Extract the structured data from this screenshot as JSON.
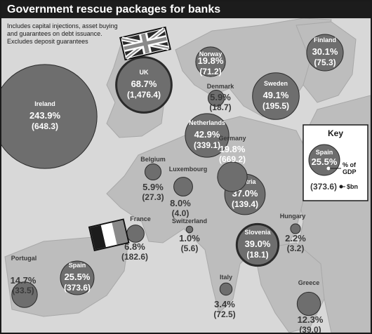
{
  "colors": {
    "background": "#d8d8d8",
    "land": "#bdbdbd",
    "bubble": "#6e6e6e",
    "bubble_outline": "#2a2a2a",
    "text_light": "#ffffff",
    "text_dark": "#3a3a3a",
    "title_bar": "#1c1c1c"
  },
  "chart_data": {
    "type": "bubble-map",
    "title": "Government rescue packages for banks",
    "notes": [
      "Includes capital injections, asset buying",
      "and guarantees on debt issuance.",
      "Excludes deposit guarantees"
    ],
    "size_measure": "% of GDP",
    "key": {
      "title": "Key",
      "example_country": "Spain",
      "example_pct": "25.5%",
      "example_bn": "(373.6)",
      "pct_label_line1": "% of",
      "pct_label_line2": "GDP",
      "bn_label": "$bn"
    },
    "countries": [
      {
        "name": "Ireland",
        "pct_gdp": 243.9,
        "pct_text": "243.9%",
        "bn": 648.3,
        "bn_text": "(648.3)"
      },
      {
        "name": "UK",
        "pct_gdp": 68.7,
        "pct_text": "68.7%",
        "bn": 1476.4,
        "bn_text": "(1,476.4)"
      },
      {
        "name": "Norway",
        "pct_gdp": 19.8,
        "pct_text": "19.8%",
        "bn": 71.2,
        "bn_text": "(71.2)"
      },
      {
        "name": "Finland",
        "pct_gdp": 30.1,
        "pct_text": "30.1%",
        "bn": 75.3,
        "bn_text": "(75.3)"
      },
      {
        "name": "Sweden",
        "pct_gdp": 49.1,
        "pct_text": "49.1%",
        "bn": 195.5,
        "bn_text": "(195.5)"
      },
      {
        "name": "Denmark",
        "pct_gdp": 5.9,
        "pct_text": "5.9%",
        "bn": 18.7,
        "bn_text": "(18.7)"
      },
      {
        "name": "Netherlands",
        "pct_gdp": 42.9,
        "pct_text": "42.9%",
        "bn": 339.1,
        "bn_text": "(339.1)"
      },
      {
        "name": "Germany",
        "pct_gdp": 19.8,
        "pct_text": "19.8%",
        "bn": 669.2,
        "bn_text": "(669.2)"
      },
      {
        "name": "Belgium",
        "pct_gdp": 5.9,
        "pct_text": "5.9%",
        "bn": 27.3,
        "bn_text": "(27.3)"
      },
      {
        "name": "Luxembourg",
        "pct_gdp": 8.0,
        "pct_text": "8.0%",
        "bn": 4.0,
        "bn_text": "(4.0)"
      },
      {
        "name": "Austria",
        "pct_gdp": 37.0,
        "pct_text": "37.0%",
        "bn": 139.4,
        "bn_text": "(139.4)"
      },
      {
        "name": "Hungary",
        "pct_gdp": 2.2,
        "pct_text": "2.2%",
        "bn": 3.2,
        "bn_text": "(3.2)"
      },
      {
        "name": "France",
        "pct_gdp": 6.8,
        "pct_text": "6.8%",
        "bn": 182.6,
        "bn_text": "(182.6)"
      },
      {
        "name": "Switzerland",
        "pct_gdp": 1.0,
        "pct_text": "1.0%",
        "bn": 5.6,
        "bn_text": "(5.6)"
      },
      {
        "name": "Slovenia",
        "pct_gdp": 39.0,
        "pct_text": "39.0%",
        "bn": 18.1,
        "bn_text": "(18.1)"
      },
      {
        "name": "Portugal",
        "pct_gdp": 14.7,
        "pct_text": "14.7%",
        "bn": 33.5,
        "bn_text": "(33.5)"
      },
      {
        "name": "Spain",
        "pct_gdp": 25.5,
        "pct_text": "25.5%",
        "bn": 373.6,
        "bn_text": "(373.6)"
      },
      {
        "name": "Italy",
        "pct_gdp": 3.4,
        "pct_text": "3.4%",
        "bn": 72.5,
        "bn_text": "(72.5)"
      },
      {
        "name": "Greece",
        "pct_gdp": 12.3,
        "pct_text": "12.3%",
        "bn": 39.0,
        "bn_text": "(39.0)"
      }
    ]
  }
}
